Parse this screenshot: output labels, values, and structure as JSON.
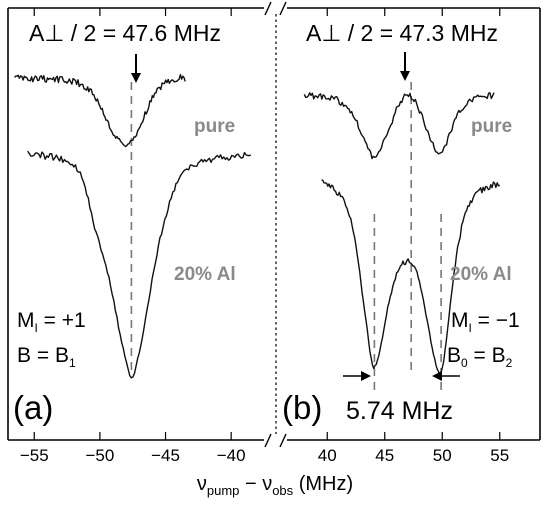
{
  "chart_data": [
    {
      "panel_label": "(a)",
      "type": "line",
      "x_tick_labels": [
        "−55",
        "−50",
        "−45",
        "−40"
      ],
      "x_ticks": [
        -55,
        -50,
        -45,
        -40
      ],
      "xlim": [
        -57,
        -37.5
      ],
      "title": "A⊥ / 2 = 47.6 MHz",
      "center_line_x": -47.6,
      "series": [
        {
          "name": "pure",
          "x": [
            -56.5,
            -55,
            -53.5,
            -52,
            -51,
            -50.5,
            -50,
            -49.5,
            -49,
            -48.5,
            -48.2,
            -48,
            -47.8,
            -47.5,
            -47.2,
            -47,
            -46.5,
            -46,
            -45.5,
            -45,
            -44.5,
            -44,
            -43.5
          ],
          "y": [
            0.0,
            0.01,
            0.01,
            0.03,
            0.09,
            0.16,
            0.27,
            0.42,
            0.55,
            0.63,
            0.67,
            0.67,
            0.66,
            0.62,
            0.57,
            0.49,
            0.34,
            0.2,
            0.1,
            0.04,
            0.01,
            0.0,
            0.0
          ]
        },
        {
          "name": "20% Al",
          "x": [
            -55.5,
            -54,
            -53,
            -52,
            -51.5,
            -51,
            -50.5,
            -50,
            -49.5,
            -49,
            -48.5,
            -48,
            -47.7,
            -47.5,
            -47.3,
            -47,
            -46.5,
            -46,
            -45.5,
            -45,
            -44.5,
            -44,
            -43,
            -42,
            -41,
            -39.5,
            -38.5
          ],
          "y": [
            0.0,
            0.01,
            0.02,
            0.05,
            0.1,
            0.2,
            0.34,
            0.45,
            0.56,
            0.72,
            0.89,
            1.04,
            1.12,
            1.12,
            1.08,
            0.99,
            0.82,
            0.62,
            0.45,
            0.31,
            0.2,
            0.12,
            0.06,
            0.03,
            0.02,
            0.01,
            0.0
          ]
        }
      ],
      "labels": {
        "pure": "pure",
        "al": "20% Al",
        "mi_main": "M",
        "mi_sub": "I",
        "mi_value": " = +1",
        "b_main": "B = B",
        "b_sub": "1"
      }
    },
    {
      "panel_label": "(b)",
      "type": "line",
      "x_tick_labels": [
        "40",
        "45",
        "50",
        "55"
      ],
      "x_ticks": [
        40,
        45,
        50,
        55
      ],
      "xlim": [
        36.5,
        58.5
      ],
      "title": "A⊥ / 2 = 47.3 MHz",
      "center_line_x": 47.3,
      "dip_lines_x": [
        44.1,
        49.9
      ],
      "splitting": "5.74 MHz",
      "series": [
        {
          "name": "pure",
          "x": [
            38,
            39,
            40.5,
            41.5,
            42.3,
            42.9,
            43.5,
            43.9,
            44.2,
            44.7,
            45.3,
            46,
            46.6,
            47.1,
            47.6,
            48.2,
            48.8,
            49.4,
            49.8,
            50.2,
            50.7,
            51.3,
            52.1,
            53.2,
            54.5
          ],
          "y": [
            0.0,
            0.01,
            0.03,
            0.09,
            0.2,
            0.36,
            0.53,
            0.62,
            0.61,
            0.52,
            0.36,
            0.15,
            0.03,
            0.0,
            0.05,
            0.2,
            0.4,
            0.55,
            0.58,
            0.53,
            0.38,
            0.2,
            0.07,
            0.02,
            0.0
          ]
        },
        {
          "name": "20% Al",
          "x": [
            39.5,
            40.5,
            41.5,
            42.3,
            42.8,
            43.3,
            43.7,
            44,
            44.3,
            44.7,
            45.2,
            45.8,
            46.5,
            47.1,
            47.8,
            48.4,
            49,
            49.5,
            49.8,
            50.1,
            50.5,
            50.9,
            51.4,
            52,
            53,
            55
          ],
          "y": [
            0.0,
            0.03,
            0.1,
            0.27,
            0.5,
            0.75,
            0.96,
            1.06,
            1.04,
            0.92,
            0.73,
            0.56,
            0.46,
            0.44,
            0.5,
            0.68,
            0.9,
            1.05,
            1.1,
            1.03,
            0.82,
            0.58,
            0.34,
            0.16,
            0.05,
            0.0
          ]
        }
      ],
      "labels": {
        "pure": "pure",
        "al": "20% Al",
        "mi_main": "M",
        "mi_sub": "I",
        "mi_value": " = −1",
        "b_main": "B",
        "b_sub0": "0",
        "b_mid": " = B",
        "b_sub2": "2"
      }
    }
  ],
  "xlabel": {
    "nu1": "ν",
    "sub1": "pump",
    "minus": " − ",
    "nu2": "ν",
    "sub2": "obs",
    "unit": " (MHz)"
  }
}
